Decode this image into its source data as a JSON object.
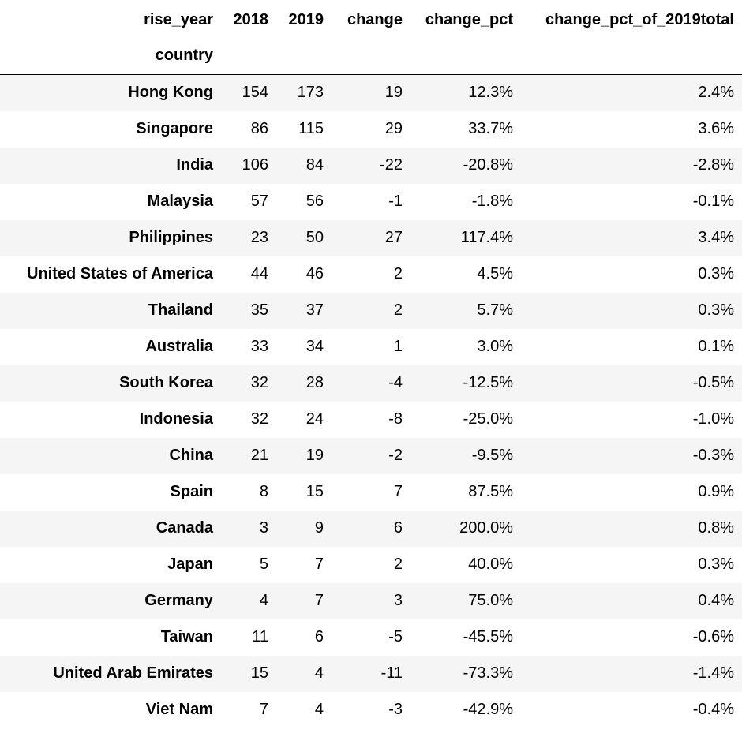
{
  "header": {
    "columns_name": "rise_year",
    "index_name": "country",
    "columns": [
      "2018",
      "2019",
      "change",
      "change_pct",
      "change_pct_of_2019total"
    ]
  },
  "rows": [
    {
      "country": "Hong Kong",
      "y2018": "154",
      "y2019": "173",
      "change": "19",
      "change_pct": "12.3%",
      "change_pct_of_2019total": "2.4%"
    },
    {
      "country": "Singapore",
      "y2018": "86",
      "y2019": "115",
      "change": "29",
      "change_pct": "33.7%",
      "change_pct_of_2019total": "3.6%"
    },
    {
      "country": "India",
      "y2018": "106",
      "y2019": "84",
      "change": "-22",
      "change_pct": "-20.8%",
      "change_pct_of_2019total": "-2.8%"
    },
    {
      "country": "Malaysia",
      "y2018": "57",
      "y2019": "56",
      "change": "-1",
      "change_pct": "-1.8%",
      "change_pct_of_2019total": "-0.1%"
    },
    {
      "country": "Philippines",
      "y2018": "23",
      "y2019": "50",
      "change": "27",
      "change_pct": "117.4%",
      "change_pct_of_2019total": "3.4%"
    },
    {
      "country": "United States of America",
      "y2018": "44",
      "y2019": "46",
      "change": "2",
      "change_pct": "4.5%",
      "change_pct_of_2019total": "0.3%"
    },
    {
      "country": "Thailand",
      "y2018": "35",
      "y2019": "37",
      "change": "2",
      "change_pct": "5.7%",
      "change_pct_of_2019total": "0.3%"
    },
    {
      "country": "Australia",
      "y2018": "33",
      "y2019": "34",
      "change": "1",
      "change_pct": "3.0%",
      "change_pct_of_2019total": "0.1%"
    },
    {
      "country": "South Korea",
      "y2018": "32",
      "y2019": "28",
      "change": "-4",
      "change_pct": "-12.5%",
      "change_pct_of_2019total": "-0.5%"
    },
    {
      "country": "Indonesia",
      "y2018": "32",
      "y2019": "24",
      "change": "-8",
      "change_pct": "-25.0%",
      "change_pct_of_2019total": "-1.0%"
    },
    {
      "country": "China",
      "y2018": "21",
      "y2019": "19",
      "change": "-2",
      "change_pct": "-9.5%",
      "change_pct_of_2019total": "-0.3%"
    },
    {
      "country": "Spain",
      "y2018": "8",
      "y2019": "15",
      "change": "7",
      "change_pct": "87.5%",
      "change_pct_of_2019total": "0.9%"
    },
    {
      "country": "Canada",
      "y2018": "3",
      "y2019": "9",
      "change": "6",
      "change_pct": "200.0%",
      "change_pct_of_2019total": "0.8%"
    },
    {
      "country": "Japan",
      "y2018": "5",
      "y2019": "7",
      "change": "2",
      "change_pct": "40.0%",
      "change_pct_of_2019total": "0.3%"
    },
    {
      "country": "Germany",
      "y2018": "4",
      "y2019": "7",
      "change": "3",
      "change_pct": "75.0%",
      "change_pct_of_2019total": "0.4%"
    },
    {
      "country": "Taiwan",
      "y2018": "11",
      "y2019": "6",
      "change": "-5",
      "change_pct": "-45.5%",
      "change_pct_of_2019total": "-0.6%"
    },
    {
      "country": "United Arab Emirates",
      "y2018": "15",
      "y2019": "4",
      "change": "-11",
      "change_pct": "-73.3%",
      "change_pct_of_2019total": "-1.4%"
    },
    {
      "country": "Viet Nam",
      "y2018": "7",
      "y2019": "4",
      "change": "-3",
      "change_pct": "-42.9%",
      "change_pct_of_2019total": "-0.4%"
    }
  ]
}
